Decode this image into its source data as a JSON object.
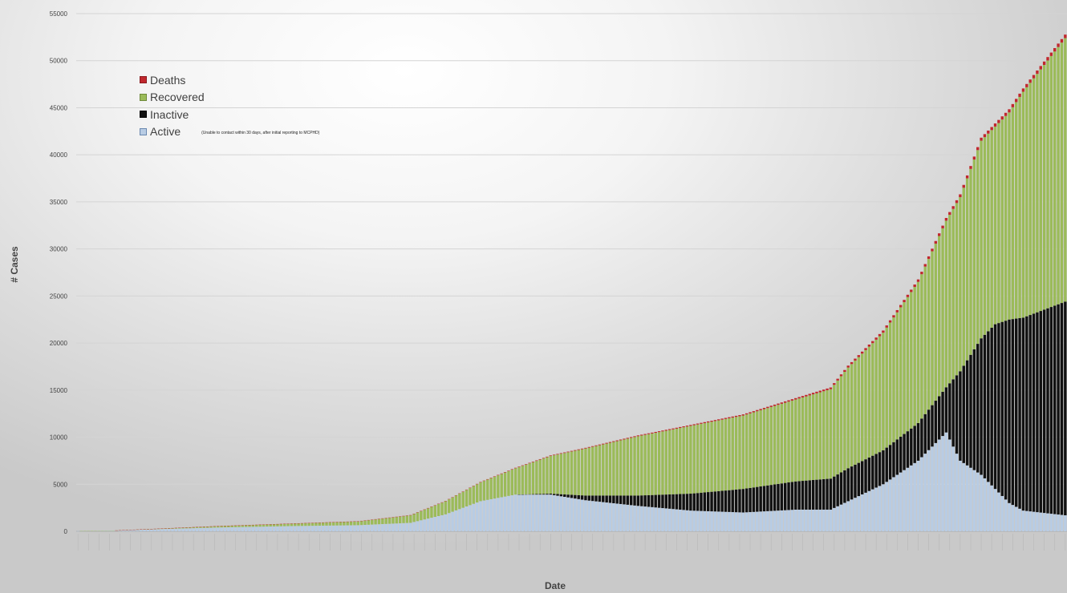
{
  "chart_data": {
    "type": "bar",
    "stacked": true,
    "xlabel": "Date",
    "ylabel": "# Cases",
    "ylim": [
      0,
      55000
    ],
    "yticks": [
      0,
      5000,
      10000,
      15000,
      20000,
      25000,
      30000,
      35000,
      40000,
      45000,
      50000,
      55000
    ],
    "grid": true,
    "legend_position": "top-left",
    "series_colors": {
      "Deaths": "#c0272d",
      "Recovered": "#9bbb59",
      "Inactive": "#111111",
      "Active": "#b8cce4"
    },
    "legend": [
      {
        "name": "Deaths",
        "color": "#c0272d"
      },
      {
        "name": "Recovered",
        "color": "#9bbb59"
      },
      {
        "name": "Inactive",
        "color": "#111111"
      },
      {
        "name": "Active",
        "color": "#b8cce4",
        "note": "(Unable to contact within 30 days, after initial reporting to MCPHD)"
      }
    ],
    "n_bars": 283,
    "anchors": [
      {
        "i": 0,
        "active": 20,
        "inactive": 0,
        "recovered": 0,
        "deaths": 0
      },
      {
        "i": 10,
        "active": 60,
        "inactive": 0,
        "recovered": 20,
        "deaths": 0
      },
      {
        "i": 25,
        "active": 250,
        "inactive": 0,
        "recovered": 60,
        "deaths": 5
      },
      {
        "i": 40,
        "active": 400,
        "inactive": 0,
        "recovered": 150,
        "deaths": 10
      },
      {
        "i": 60,
        "active": 550,
        "inactive": 0,
        "recovered": 250,
        "deaths": 15
      },
      {
        "i": 80,
        "active": 650,
        "inactive": 0,
        "recovered": 400,
        "deaths": 20
      },
      {
        "i": 95,
        "active": 900,
        "inactive": 0,
        "recovered": 800,
        "deaths": 25
      },
      {
        "i": 105,
        "active": 1800,
        "inactive": 0,
        "recovered": 1400,
        "deaths": 30
      },
      {
        "i": 115,
        "active": 3200,
        "inactive": 0,
        "recovered": 2000,
        "deaths": 40
      },
      {
        "i": 125,
        "active": 3900,
        "inactive": 0,
        "recovered": 2800,
        "deaths": 50
      },
      {
        "i": 135,
        "active": 3900,
        "inactive": 100,
        "recovered": 4000,
        "deaths": 60
      },
      {
        "i": 145,
        "active": 3300,
        "inactive": 500,
        "recovered": 5000,
        "deaths": 70
      },
      {
        "i": 160,
        "active": 2700,
        "inactive": 1100,
        "recovered": 6300,
        "deaths": 90
      },
      {
        "i": 175,
        "active": 2200,
        "inactive": 1800,
        "recovered": 7200,
        "deaths": 100
      },
      {
        "i": 190,
        "active": 2000,
        "inactive": 2500,
        "recovered": 7800,
        "deaths": 120
      },
      {
        "i": 205,
        "active": 2300,
        "inactive": 3000,
        "recovered": 8700,
        "deaths": 150
      },
      {
        "i": 215,
        "active": 2300,
        "inactive": 3300,
        "recovered": 9500,
        "deaths": 180
      },
      {
        "i": 220,
        "active": 3200,
        "inactive": 3500,
        "recovered": 10700,
        "deaths": 200
      },
      {
        "i": 230,
        "active": 5000,
        "inactive": 3600,
        "recovered": 12500,
        "deaths": 230
      },
      {
        "i": 240,
        "active": 7500,
        "inactive": 4000,
        "recovered": 15000,
        "deaths": 260
      },
      {
        "i": 248,
        "active": 10500,
        "inactive": 4800,
        "recovered": 17700,
        "deaths": 290
      },
      {
        "i": 252,
        "active": 7500,
        "inactive": 9500,
        "recovered": 18500,
        "deaths": 300
      },
      {
        "i": 258,
        "active": 6000,
        "inactive": 14500,
        "recovered": 21000,
        "deaths": 320
      },
      {
        "i": 262,
        "active": 4500,
        "inactive": 17500,
        "recovered": 21000,
        "deaths": 330
      },
      {
        "i": 266,
        "active": 3000,
        "inactive": 19500,
        "recovered": 22000,
        "deaths": 340
      },
      {
        "i": 270,
        "active": 2200,
        "inactive": 20500,
        "recovered": 24000,
        "deaths": 350
      },
      {
        "i": 282,
        "active": 1700,
        "inactive": 22700,
        "recovered": 28000,
        "deaths": 370
      }
    ]
  }
}
